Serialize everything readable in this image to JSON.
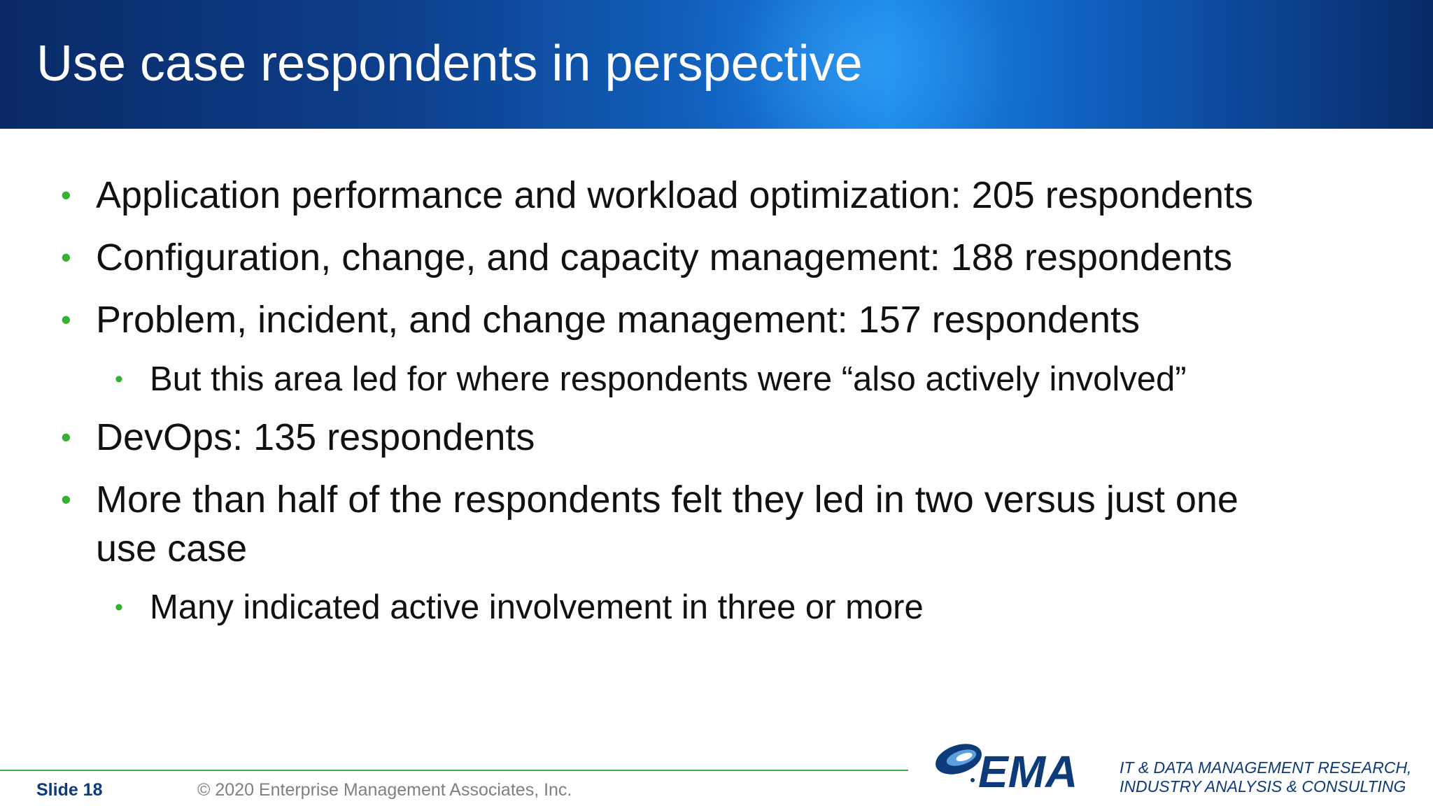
{
  "header": {
    "title": "Use case respondents in perspective"
  },
  "bullets": [
    {
      "level": 1,
      "text": "Application performance and workload optimization: 205 respondents"
    },
    {
      "level": 1,
      "text": "Configuration, change, and capacity management: 188 respondents"
    },
    {
      "level": 1,
      "text": "Problem, incident, and change management: 157 respondents"
    },
    {
      "level": 2,
      "text": "But this area led for where respondents were “also actively involved”"
    },
    {
      "level": 1,
      "text": "DevOps: 135 respondents"
    },
    {
      "level": 1,
      "text_line1": "More than half of the respondents felt they led in two versus just one",
      "text_line2": "use case"
    },
    {
      "level": 2,
      "text": "Many indicated active involvement in three or more"
    }
  ],
  "footer": {
    "slide_label": "Slide 18",
    "copyright": "© 2020  Enterprise Management Associates, Inc.",
    "logo_text": "EMA",
    "tagline_line1": "IT & DATA MANAGEMENT RESEARCH,",
    "tagline_line2": "INDUSTRY ANALYSIS & CONSULTING"
  },
  "colors": {
    "bullet_green": "#34b233",
    "brand_blue": "#0d3b7a",
    "footer_line": "#3fae3a"
  }
}
